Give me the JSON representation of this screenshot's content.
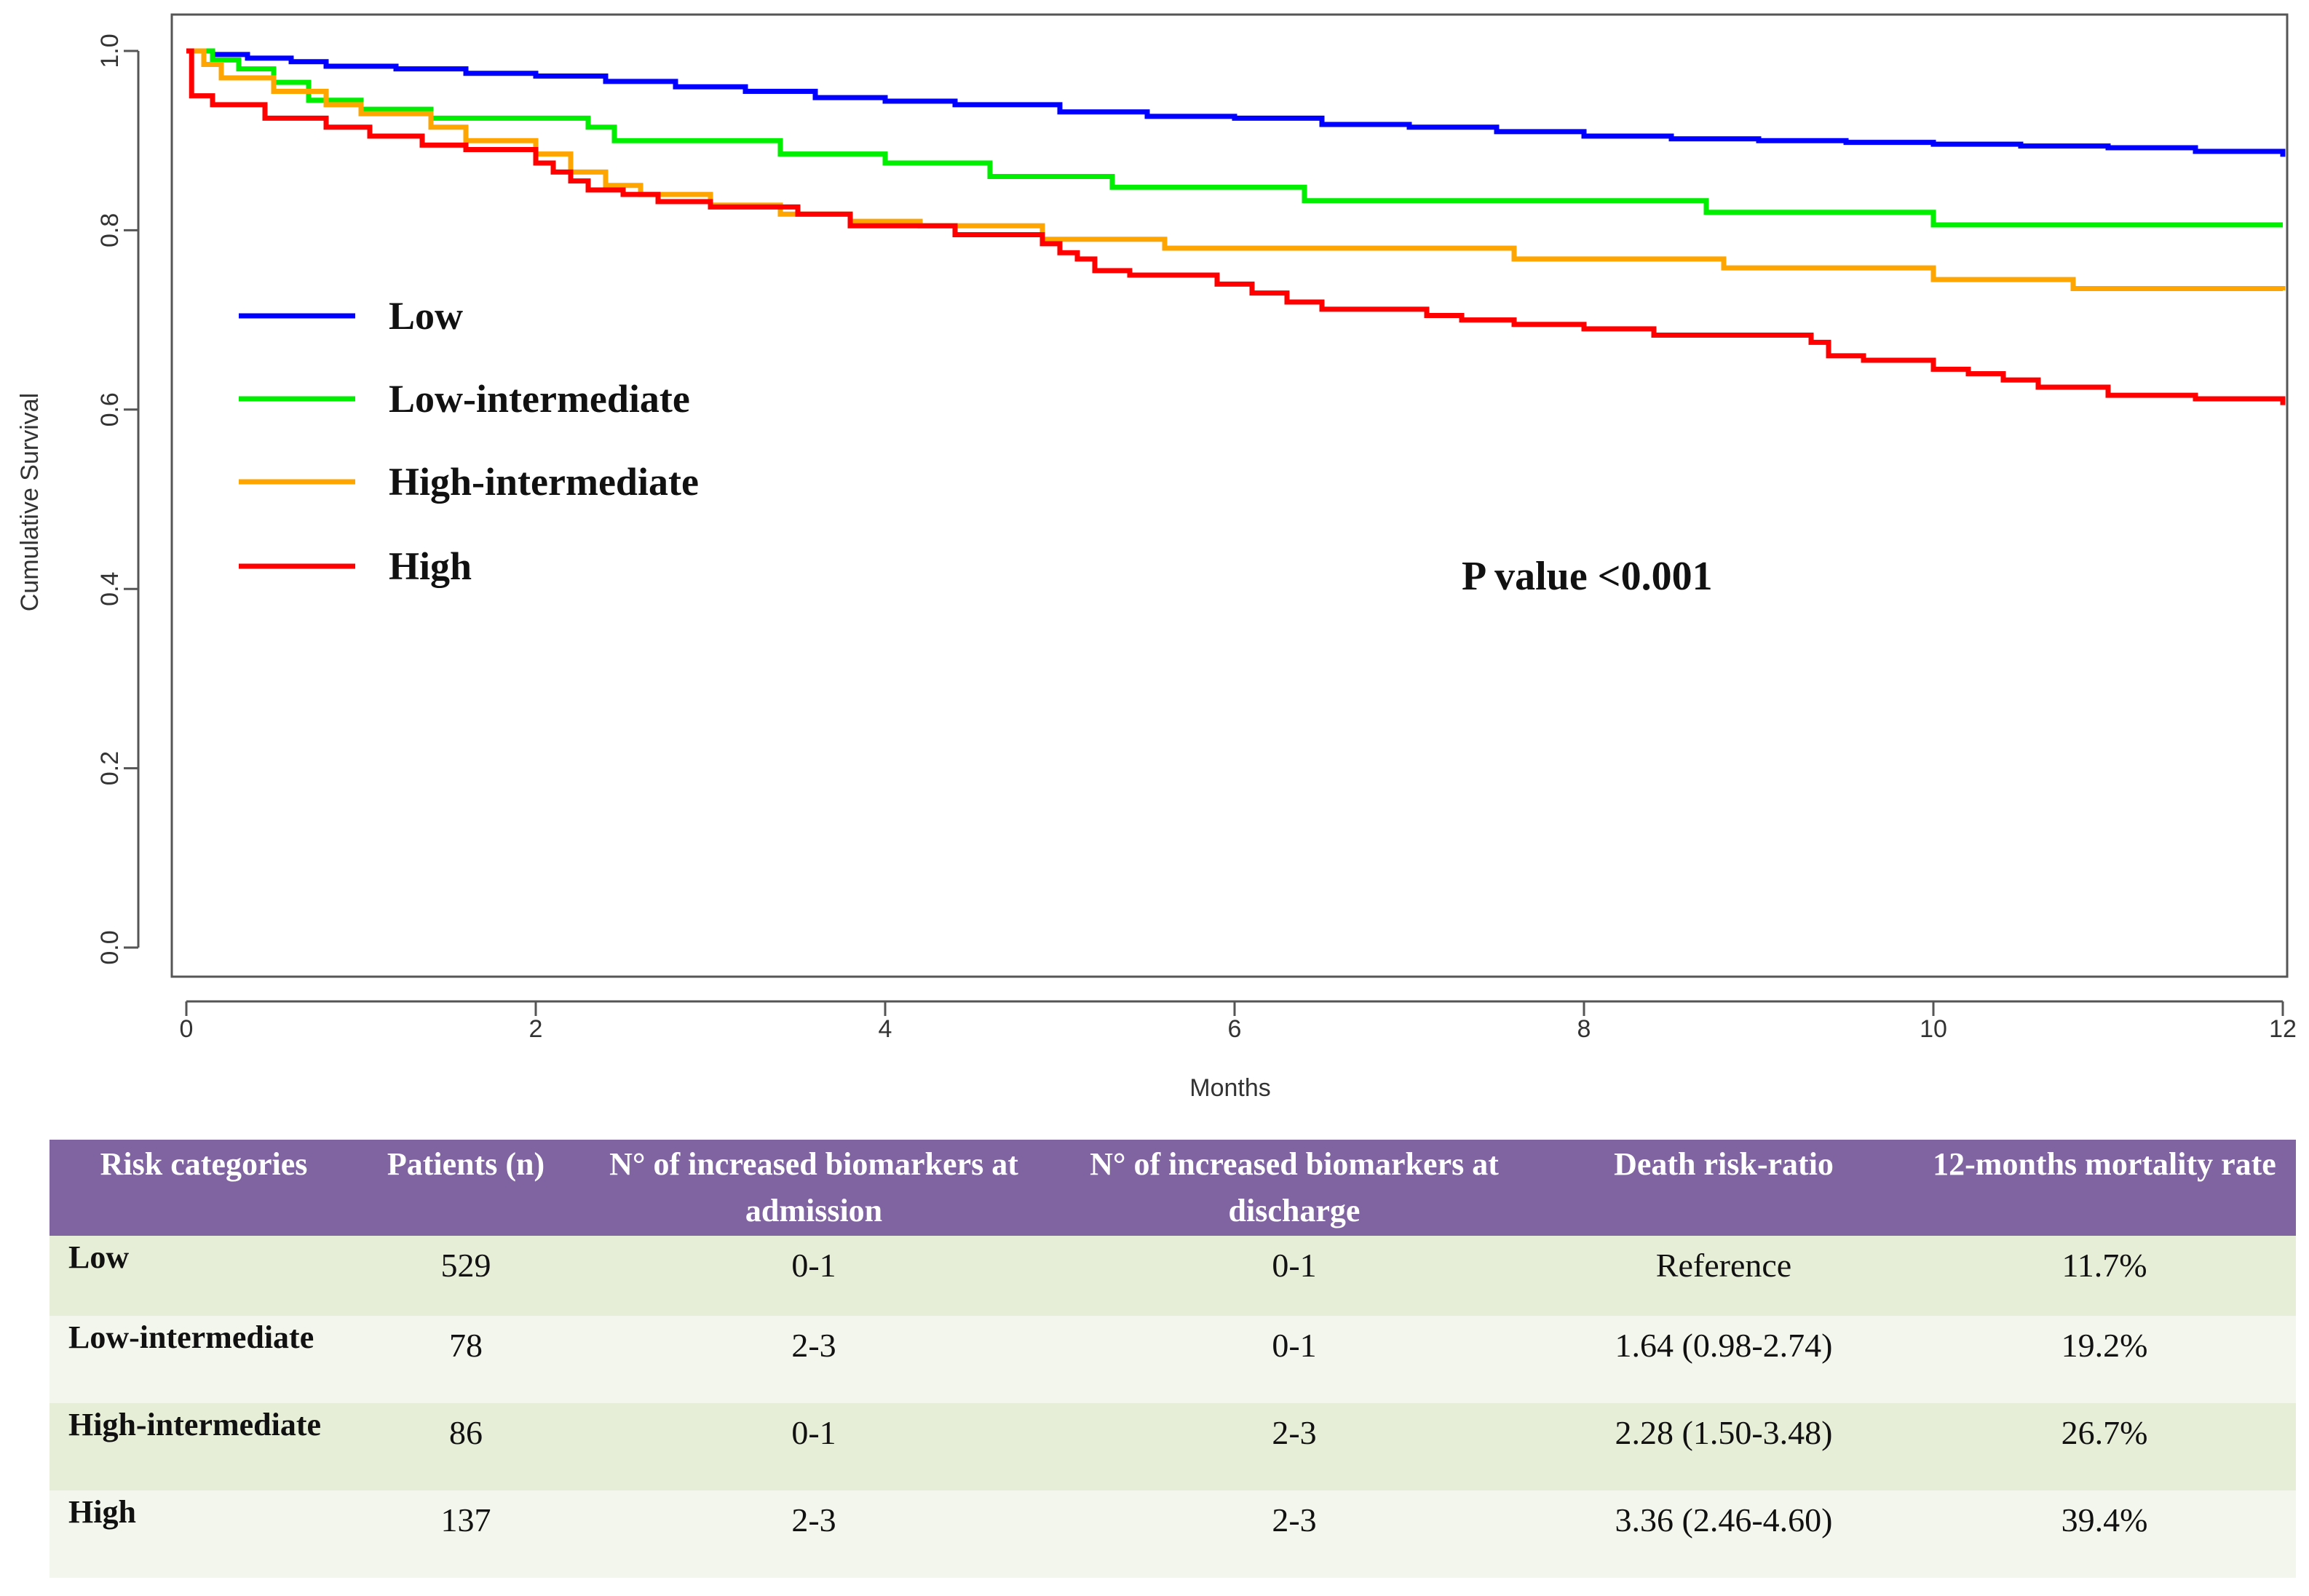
{
  "chart_data": {
    "type": "line",
    "subtype": "kaplan-meier step",
    "title": "",
    "xlabel": "Months",
    "ylabel": "Cumulative Survival",
    "xlim": [
      0,
      12
    ],
    "ylim": [
      0,
      1.0
    ],
    "xticks": [
      "0",
      "2",
      "4",
      "6",
      "8",
      "10",
      "12"
    ],
    "yticks": [
      "0.0",
      "0.2",
      "0.4",
      "0.6",
      "0.8",
      "1.0"
    ],
    "legend_position": "top-left",
    "annotation": "P value <0.001",
    "series": [
      {
        "name": "Low",
        "color": "#0000ff",
        "x": [
          0,
          0.15,
          0.35,
          0.6,
          0.8,
          1.2,
          1.6,
          2.0,
          2.4,
          2.8,
          3.2,
          3.6,
          4.0,
          4.4,
          5.0,
          5.5,
          6.0,
          6.5,
          7.0,
          7.5,
          8.0,
          8.5,
          9.0,
          9.5,
          10.0,
          10.5,
          11.0,
          11.5,
          12.0
        ],
        "y": [
          1.0,
          0.996,
          0.992,
          0.988,
          0.983,
          0.98,
          0.975,
          0.972,
          0.966,
          0.96,
          0.955,
          0.948,
          0.944,
          0.94,
          0.932,
          0.927,
          0.925,
          0.918,
          0.915,
          0.91,
          0.905,
          0.902,
          0.9,
          0.898,
          0.896,
          0.894,
          0.892,
          0.888,
          0.882
        ]
      },
      {
        "name": "Low-intermediate",
        "color": "#00ee00",
        "x": [
          0,
          0.15,
          0.3,
          0.5,
          0.7,
          1.0,
          1.4,
          2.3,
          2.45,
          3.4,
          4.0,
          4.6,
          5.3,
          6.4,
          8.7,
          10.0,
          12.0
        ],
        "y": [
          1.0,
          0.99,
          0.98,
          0.965,
          0.945,
          0.935,
          0.925,
          0.915,
          0.9,
          0.885,
          0.875,
          0.86,
          0.848,
          0.833,
          0.82,
          0.806,
          0.806
        ]
      },
      {
        "name": "High-intermediate",
        "color": "#ffa500",
        "x": [
          0,
          0.1,
          0.2,
          0.5,
          0.8,
          1.0,
          1.4,
          1.6,
          2.0,
          2.2,
          2.4,
          2.6,
          3.0,
          3.4,
          3.8,
          4.2,
          4.9,
          5.6,
          7.6,
          8.8,
          10.0,
          10.8,
          12.0
        ],
        "y": [
          1.0,
          0.985,
          0.97,
          0.955,
          0.94,
          0.93,
          0.915,
          0.9,
          0.885,
          0.865,
          0.85,
          0.84,
          0.828,
          0.818,
          0.81,
          0.805,
          0.79,
          0.78,
          0.768,
          0.758,
          0.745,
          0.735,
          0.733
        ]
      },
      {
        "name": "High",
        "color": "#ff0000",
        "x": [
          0,
          0.03,
          0.15,
          0.45,
          0.8,
          1.05,
          1.35,
          1.6,
          2.0,
          2.1,
          2.2,
          2.3,
          2.5,
          2.7,
          3.0,
          3.5,
          3.8,
          4.4,
          4.9,
          5.0,
          5.1,
          5.2,
          5.4,
          5.9,
          6.1,
          6.3,
          6.5,
          7.1,
          7.3,
          7.6,
          8.0,
          8.4,
          9.3,
          9.4,
          9.6,
          10.0,
          10.2,
          10.4,
          10.6,
          11.0,
          11.5,
          12.0
        ],
        "y": [
          1.0,
          0.95,
          0.94,
          0.925,
          0.915,
          0.905,
          0.895,
          0.89,
          0.875,
          0.865,
          0.855,
          0.845,
          0.84,
          0.832,
          0.826,
          0.818,
          0.805,
          0.795,
          0.785,
          0.775,
          0.768,
          0.755,
          0.75,
          0.74,
          0.73,
          0.72,
          0.712,
          0.705,
          0.7,
          0.695,
          0.69,
          0.683,
          0.675,
          0.66,
          0.655,
          0.645,
          0.64,
          0.633,
          0.625,
          0.616,
          0.612,
          0.605
        ]
      }
    ]
  },
  "table": {
    "headers": [
      "Risk categories",
      "Patients (n)",
      "N° of increased biomarkers at admission",
      "N° of increased biomarkers at discharge",
      "Death risk-ratio",
      "12-months mortality rate"
    ],
    "rows": [
      [
        "Low",
        "529",
        "0-1",
        "0-1",
        "Reference",
        "11.7%"
      ],
      [
        "Low-intermediate",
        "78",
        "2-3",
        "0-1",
        "1.64 (0.98-2.74)",
        "19.2%"
      ],
      [
        "High-intermediate",
        "86",
        "0-1",
        "2-3",
        "2.28 (1.50-3.48)",
        "26.7%"
      ],
      [
        "High",
        "137",
        "2-3",
        "2-3",
        "3.36 (2.46-4.60)",
        "39.4%"
      ]
    ],
    "header_color": "#8064a2"
  }
}
